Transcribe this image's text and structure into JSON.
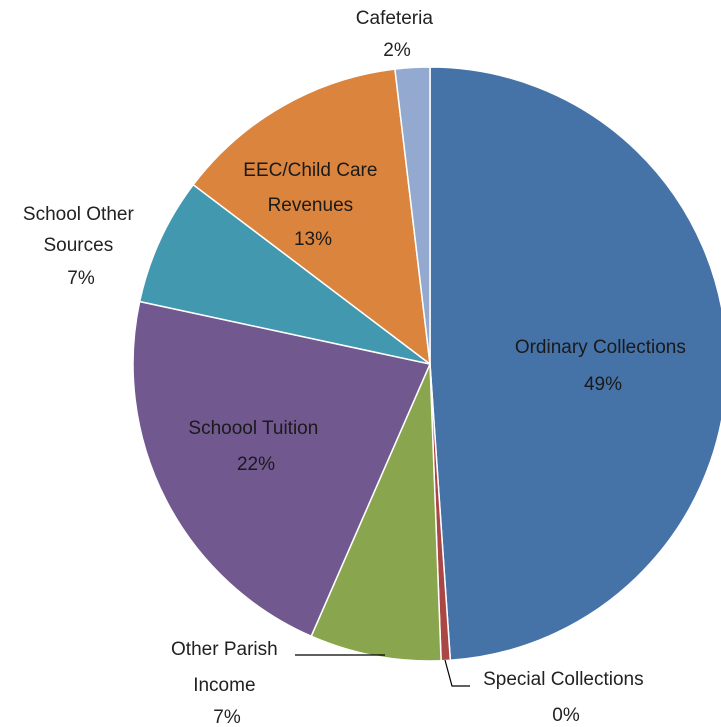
{
  "chart_data": {
    "type": "pie",
    "title": "",
    "start": "12 o'clock",
    "direction": "clockwise",
    "legend": "none",
    "slices": [
      {
        "label_lines": [
          "Ordinary Collections"
        ],
        "pct_label": "49%",
        "value": 49.3,
        "color": "#4572A7"
      },
      {
        "label_lines": [
          "Special Collections"
        ],
        "pct_label": "0%",
        "value": 0.5,
        "color": "#AA4643"
      },
      {
        "label_lines": [
          "Other Parish",
          "Income"
        ],
        "pct_label": "7%",
        "value": 7.2,
        "color": "#89A54E"
      },
      {
        "label_lines": [
          "Schoool Tuition"
        ],
        "pct_label": "22%",
        "value": 22.0,
        "color": "#71588F"
      },
      {
        "label_lines": [
          "School Other",
          "Sources"
        ],
        "pct_label": "7%",
        "value": 7.0,
        "color": "#4198AF"
      },
      {
        "label_lines": [
          "EEC/Child Care",
          "Revenues"
        ],
        "pct_label": "13%",
        "value": 12.9,
        "color": "#DB843D"
      },
      {
        "label_lines": [
          "Cafeteria"
        ],
        "pct_label": "2%",
        "value": 1.9,
        "color": "#93A9CF"
      }
    ]
  }
}
